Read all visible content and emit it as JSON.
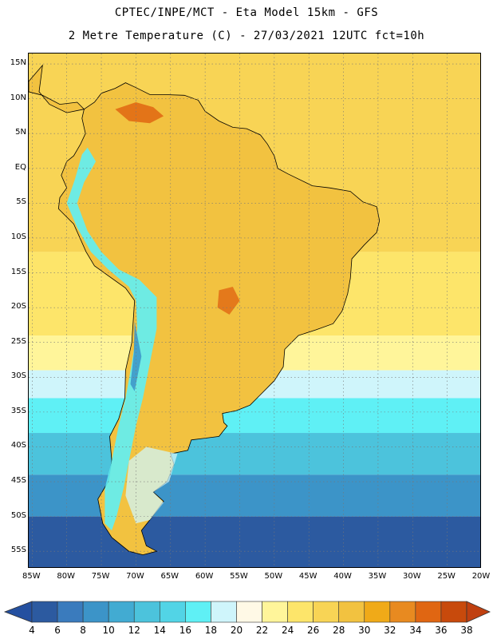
{
  "header": {
    "line1": "CPTEC/INPE/MCT -  Eta Model 15km - GFS",
    "line2": "2 Metre Temperature (C) - 27/03/2021 12UTC fct=10h"
  },
  "axes": {
    "lat_labels": [
      "15N",
      "10N",
      "5N",
      "EQ",
      "5S",
      "10S",
      "15S",
      "20S",
      "25S",
      "30S",
      "35S",
      "40S",
      "45S",
      "50S",
      "55S"
    ],
    "lat_values": [
      15,
      10,
      5,
      0,
      -5,
      -10,
      -15,
      -20,
      -25,
      -30,
      -35,
      -40,
      -45,
      -50,
      -55
    ],
    "lon_labels": [
      "85W",
      "80W",
      "75W",
      "70W",
      "65W",
      "60W",
      "55W",
      "50W",
      "45W",
      "40W",
      "35W",
      "30W",
      "25W",
      "20W"
    ],
    "lon_values": [
      -85,
      -80,
      -75,
      -70,
      -65,
      -60,
      -55,
      -50,
      -45,
      -40,
      -35,
      -30,
      -25,
      -20
    ],
    "lon_range": [
      -85.5,
      -20
    ],
    "lat_range": [
      -57.5,
      16.5
    ],
    "grid": "dotted"
  },
  "colorbar": {
    "labels": [
      "4",
      "6",
      "8",
      "10",
      "12",
      "14",
      "16",
      "18",
      "20",
      "22",
      "24",
      "26",
      "28",
      "30",
      "32",
      "34",
      "36",
      "38"
    ],
    "colors": [
      "#2c5aa0",
      "#3a7bbd",
      "#3c94c8",
      "#42abd2",
      "#4cc3dc",
      "#52d4e6",
      "#5ff0f5",
      "#cff5fb",
      "#fff9e6",
      "#fff59a",
      "#fde56a",
      "#f8d455",
      "#f2c240",
      "#f0aa18",
      "#e88a20",
      "#e06612",
      "#c84a0c"
    ],
    "under_color": "#2450a0",
    "over_color": "#c04010"
  },
  "map_colors": {
    "ocean_tropical": "#f8d455",
    "ocean_warm": "#fde56a",
    "ocean_mild": "#fff59a",
    "ocean_cool": "#cff5fb",
    "ocean_cold1": "#5ff0f5",
    "ocean_cold2": "#4cc3dc",
    "ocean_cold3": "#3c94c8",
    "ocean_cold4": "#2c5aa0",
    "land_hot": "#f2c240",
    "land_veryhot": "#e06612",
    "andes": "#5ff0f5",
    "andes_peak": "#3c94c8",
    "coast": "#000000"
  }
}
